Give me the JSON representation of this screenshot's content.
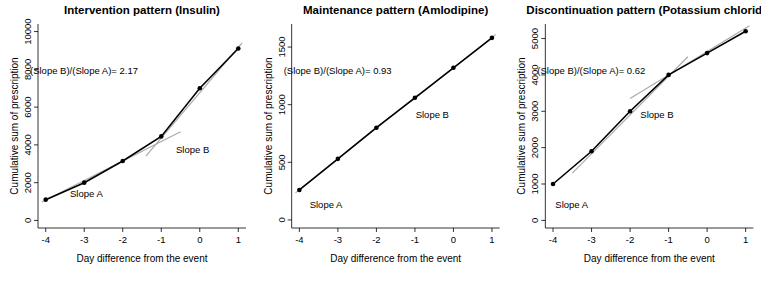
{
  "chart_data": [
    {
      "type": "line",
      "title": "Intervention pattern (Insulin)",
      "x_label": "Day difference from the event",
      "y_label": "Cumulative sum of prescription",
      "x": [
        -4,
        -3,
        -2,
        -1,
        0,
        1
      ],
      "series": [
        {
          "color": "#000000",
          "marker": "circle",
          "values": [
            1100,
            2000,
            3150,
            4450,
            7000,
            9100
          ]
        }
      ],
      "fit_lines": [
        {
          "label": "Slope A",
          "color": "#aaaaaa",
          "x": [
            -4.1,
            -0.5
          ],
          "y": [
            980,
            4700
          ]
        },
        {
          "label": "Slope B",
          "color": "#aaaaaa",
          "x": [
            -1.4,
            1.1
          ],
          "y": [
            3400,
            9400
          ]
        }
      ],
      "annotation": "(Slope B)/(Slope A)= 2.17",
      "xlim": [
        -4.2,
        1.2
      ],
      "xticks": [
        -4,
        -3,
        -2,
        -1,
        0,
        1
      ],
      "ylim": [
        -400,
        10400
      ],
      "yticks": [
        0,
        2000,
        4000,
        6000,
        8000,
        10000
      ]
    },
    {
      "type": "line",
      "title": "Maintenance pattern (Amlodipine)",
      "x_label": "Day difference from the event",
      "y_label": "Cumulative sum of prescription",
      "x": [
        -4,
        -3,
        -2,
        -1,
        0,
        1
      ],
      "series": [
        {
          "color": "#000000",
          "marker": "circle",
          "values": [
            260,
            530,
            800,
            1060,
            1320,
            1580
          ]
        }
      ],
      "fit_lines": [
        {
          "label": "Slope A",
          "color": "#aaaaaa",
          "x": [
            -4.1,
            -0.9
          ],
          "y": [
            235,
            1090
          ]
        },
        {
          "label": "Slope B",
          "color": "#aaaaaa",
          "x": [
            -1.1,
            1.1
          ],
          "y": [
            1030,
            1610
          ]
        }
      ],
      "annotation": "(Slope B)/(Slope A)= 0.93",
      "xlim": [
        -4.2,
        1.2
      ],
      "xticks": [
        -4,
        -3,
        -2,
        -1,
        0,
        1
      ],
      "ylim": [
        -70,
        1700
      ],
      "yticks": [
        0,
        500,
        1000,
        1500
      ]
    },
    {
      "type": "line",
      "title": "Discontinuation pattern (Potassium chloride)",
      "x_label": "Day difference from the event",
      "y_label": "Cumulative sum of prescription",
      "x": [
        -4,
        -3,
        -2,
        -1,
        0,
        1
      ],
      "series": [
        {
          "color": "#000000",
          "marker": "circle",
          "values": [
            1000,
            1900,
            3000,
            4000,
            4600,
            5200
          ]
        }
      ],
      "fit_lines": [
        {
          "label": "Slope A",
          "color": "#aaaaaa",
          "x": [
            -3.5,
            -0.5
          ],
          "y": [
            1300,
            4500
          ]
        },
        {
          "label": "Slope B",
          "color": "#aaaaaa",
          "x": [
            -2.0,
            1.1
          ],
          "y": [
            3350,
            5350
          ]
        }
      ],
      "annotation": "(Slope B)/(Slope A)= 0.62",
      "xlim": [
        -4.2,
        1.2
      ],
      "xticks": [
        -4,
        -3,
        -2,
        -1,
        0,
        1
      ],
      "ylim": [
        -210,
        5400
      ],
      "yticks": [
        0,
        1000,
        2000,
        3000,
        4000,
        5000
      ]
    }
  ]
}
